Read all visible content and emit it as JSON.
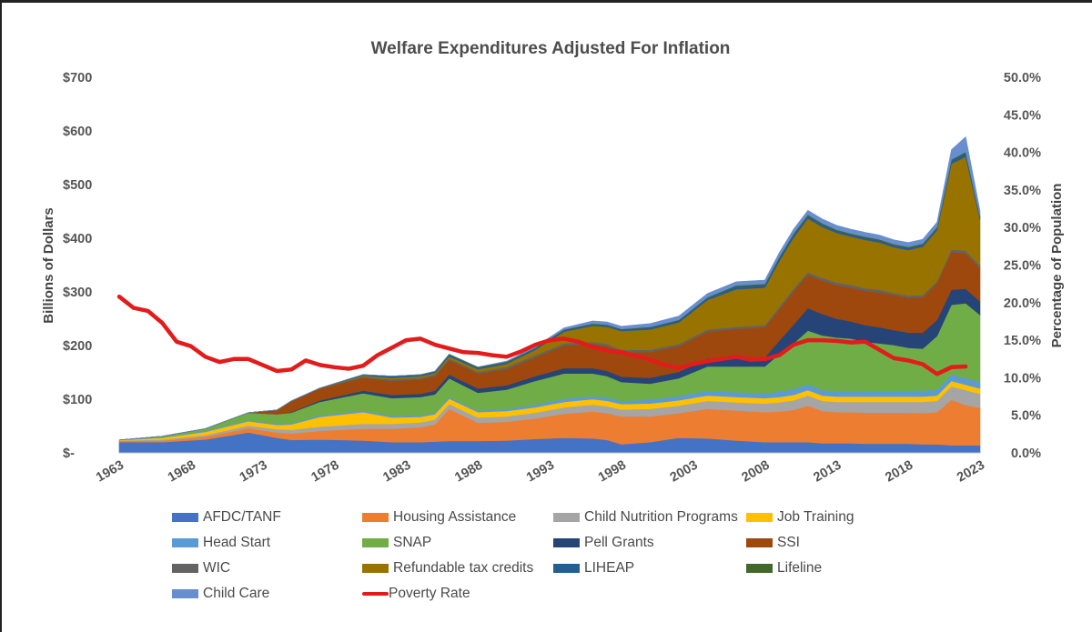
{
  "chart_data": {
    "type": "area",
    "stacked": true,
    "title": "Welfare Expenditures Adjusted For Inflation",
    "ylabel": "Billions of Dollars",
    "y2label": "Percentage of Population",
    "ylim": [
      0,
      700
    ],
    "y2lim": [
      0,
      50
    ],
    "yticks": [
      "$-",
      "$100",
      "$200",
      "$300",
      "$400",
      "$500",
      "$600",
      "$700"
    ],
    "y2ticks": [
      "0.0%",
      "5.0%",
      "10.0%",
      "15.0%",
      "20.0%",
      "25.0%",
      "30.0%",
      "35.0%",
      "40.0%",
      "45.0%",
      "50.0%"
    ],
    "xticks": [
      "1963",
      "1968",
      "1973",
      "1978",
      "1983",
      "1988",
      "1993",
      "1998",
      "2003",
      "2008",
      "2013",
      "2018",
      "2023"
    ],
    "xticks_values": [
      1963,
      1968,
      1973,
      1978,
      1983,
      1988,
      1993,
      1998,
      2003,
      2008,
      2013,
      2018,
      2023
    ],
    "legend_position": "bottom",
    "years": [
      1963,
      1966,
      1969,
      1972,
      1974,
      1975,
      1977,
      1980,
      1982,
      1984,
      1985,
      1986,
      1988,
      1990,
      1992,
      1994,
      1996,
      1997,
      1998,
      2000,
      2002,
      2004,
      2006,
      2008,
      2009,
      2010,
      2011,
      2012,
      2013,
      2014,
      2015,
      2016,
      2017,
      2018,
      2019,
      2020,
      2021,
      2022,
      2023
    ],
    "series": [
      {
        "name": "AFDC/TANF",
        "color": "#4472C4",
        "values": [
          20,
          20,
          25,
          38,
          28,
          24,
          25,
          23,
          20,
          20,
          21,
          22,
          22,
          23,
          26,
          28,
          27,
          24,
          16,
          20,
          28,
          27,
          23,
          20,
          20,
          20,
          20,
          18,
          18,
          18,
          17,
          17,
          17,
          17,
          16,
          16,
          14,
          14,
          14
        ]
      },
      {
        "name": "Housing Assistance",
        "color": "#ED7D31",
        "values": [
          2,
          3,
          5,
          8,
          10,
          12,
          16,
          22,
          25,
          28,
          32,
          60,
          34,
          35,
          38,
          45,
          50,
          50,
          52,
          48,
          46,
          55,
          56,
          56,
          57,
          60,
          68,
          60,
          58,
          58,
          58,
          58,
          58,
          58,
          58,
          60,
          85,
          75,
          70
        ]
      },
      {
        "name": "Child Nutrition Programs",
        "color": "#A5A5A5",
        "values": [
          1,
          2,
          3,
          5,
          6,
          7,
          8,
          9,
          9,
          9,
          9,
          9,
          10,
          10,
          11,
          12,
          13,
          13,
          13,
          14,
          14,
          15,
          15,
          16,
          17,
          18,
          19,
          19,
          19,
          19,
          20,
          20,
          20,
          20,
          21,
          21,
          25,
          28,
          26
        ]
      },
      {
        "name": "Job Training",
        "color": "#FFC000",
        "values": [
          1,
          3,
          6,
          8,
          8,
          10,
          18,
          22,
          12,
          10,
          10,
          10,
          10,
          10,
          10,
          10,
          10,
          10,
          10,
          10,
          10,
          10,
          10,
          10,
          10,
          10,
          10,
          10,
          10,
          10,
          10,
          10,
          10,
          10,
          10,
          10,
          10,
          10,
          10
        ]
      },
      {
        "name": "Head Start",
        "color": "#5B9BD5",
        "values": [
          0,
          1,
          2,
          2,
          2,
          2,
          3,
          3,
          3,
          3,
          3,
          3,
          3,
          4,
          5,
          6,
          6,
          6,
          6,
          7,
          8,
          9,
          9,
          9,
          10,
          11,
          11,
          10,
          10,
          10,
          10,
          11,
          11,
          11,
          11,
          11,
          12,
          12,
          12
        ]
      },
      {
        "name": "SNAP",
        "color": "#70AD47",
        "values": [
          0,
          2,
          4,
          14,
          18,
          20,
          25,
          32,
          33,
          34,
          34,
          35,
          33,
          36,
          44,
          47,
          42,
          40,
          35,
          30,
          33,
          45,
          48,
          50,
          70,
          85,
          100,
          102,
          100,
          98,
          92,
          88,
          85,
          80,
          78,
          100,
          130,
          140,
          125
        ]
      },
      {
        "name": "Pell Grants",
        "color": "#264478",
        "values": [
          0,
          0,
          0,
          0,
          0,
          1,
          3,
          5,
          6,
          6,
          7,
          7,
          8,
          8,
          9,
          10,
          10,
          10,
          10,
          11,
          12,
          15,
          16,
          17,
          25,
          35,
          42,
          40,
          35,
          32,
          31,
          30,
          28,
          28,
          30,
          30,
          28,
          27,
          25
        ]
      },
      {
        "name": "SSI",
        "color": "#9E480E",
        "values": [
          0,
          0,
          0,
          0,
          8,
          20,
          22,
          24,
          26,
          27,
          27,
          27,
          28,
          30,
          35,
          42,
          45,
          46,
          46,
          48,
          48,
          50,
          54,
          56,
          58,
          62,
          62,
          62,
          63,
          63,
          64,
          65,
          65,
          65,
          66,
          68,
          70,
          66,
          62
        ]
      },
      {
        "name": "WIC",
        "color": "#636363",
        "values": [
          0,
          0,
          0,
          0,
          0,
          1,
          1,
          2,
          3,
          3,
          3,
          3,
          3,
          4,
          4,
          4,
          4,
          4,
          4,
          4,
          4,
          4,
          4,
          4,
          5,
          5,
          5,
          5,
          5,
          5,
          5,
          5,
          4,
          4,
          4,
          4,
          5,
          5,
          5
        ]
      },
      {
        "name": "Refundable tax credits",
        "color": "#997300",
        "values": [
          0,
          0,
          0,
          0,
          0,
          0,
          0,
          2,
          3,
          3,
          3,
          4,
          5,
          6,
          10,
          22,
          30,
          32,
          35,
          38,
          40,
          55,
          70,
          70,
          85,
          95,
          100,
          95,
          92,
          90,
          90,
          88,
          85,
          85,
          90,
          95,
          160,
          175,
          85
        ]
      },
      {
        "name": "LIHEAP",
        "color": "#255E91",
        "values": [
          0,
          0,
          0,
          0,
          0,
          0,
          0,
          2,
          3,
          3,
          3,
          3,
          3,
          3,
          3,
          3,
          3,
          3,
          3,
          4,
          4,
          4,
          5,
          5,
          6,
          6,
          5,
          5,
          4,
          4,
          4,
          4,
          4,
          4,
          4,
          4,
          6,
          7,
          5
        ]
      },
      {
        "name": "Lifeline",
        "color": "#43682B",
        "values": [
          0,
          0,
          0,
          0,
          0,
          0,
          0,
          0,
          0,
          0,
          0,
          1,
          1,
          1,
          1,
          1,
          1,
          1,
          1,
          1,
          1,
          1,
          2,
          2,
          2,
          2,
          2,
          2,
          2,
          2,
          2,
          2,
          2,
          2,
          2,
          2,
          2,
          2,
          2
        ]
      },
      {
        "name": "Child Care",
        "color": "#698ED0",
        "values": [
          0,
          0,
          0,
          0,
          0,
          0,
          0,
          0,
          0,
          0,
          0,
          0,
          0,
          1,
          2,
          3,
          5,
          5,
          5,
          6,
          7,
          7,
          7,
          7,
          8,
          8,
          8,
          8,
          8,
          8,
          8,
          8,
          8,
          8,
          8,
          9,
          18,
          28,
          10
        ]
      }
    ],
    "line_series": {
      "name": "Poverty Rate",
      "color": "#E31B1B",
      "axis": "right",
      "x": [
        1963,
        1964,
        1965,
        1966,
        1967,
        1968,
        1969,
        1970,
        1971,
        1972,
        1973,
        1974,
        1975,
        1976,
        1977,
        1978,
        1979,
        1980,
        1981,
        1982,
        1983,
        1984,
        1985,
        1986,
        1987,
        1988,
        1989,
        1990,
        1991,
        1992,
        1993,
        1994,
        1995,
        1996,
        1997,
        1998,
        1999,
        2000,
        2001,
        2002,
        2003,
        2004,
        2005,
        2006,
        2007,
        2008,
        2009,
        2010,
        2011,
        2012,
        2013,
        2014,
        2015,
        2016,
        2017,
        2018,
        2019,
        2020,
        2021,
        2022
      ],
      "values": [
        20.8,
        19.3,
        18.9,
        17.3,
        14.8,
        14.2,
        12.8,
        12.1,
        12.5,
        12.5,
        11.7,
        10.9,
        11.1,
        12.3,
        11.7,
        11.4,
        11.2,
        11.6,
        13.0,
        14.0,
        15.0,
        15.2,
        14.4,
        13.9,
        13.4,
        13.3,
        13.0,
        12.8,
        13.5,
        14.4,
        15.0,
        15.2,
        14.8,
        14.1,
        13.6,
        13.4,
        12.9,
        12.4,
        11.7,
        11.3,
        11.8,
        12.2,
        12.5,
        12.8,
        12.4,
        12.5,
        13.0,
        14.4,
        15.0,
        15.0,
        14.9,
        14.7,
        14.8,
        13.7,
        12.6,
        12.3,
        11.8,
        10.5,
        11.4,
        11.5
      ]
    }
  }
}
